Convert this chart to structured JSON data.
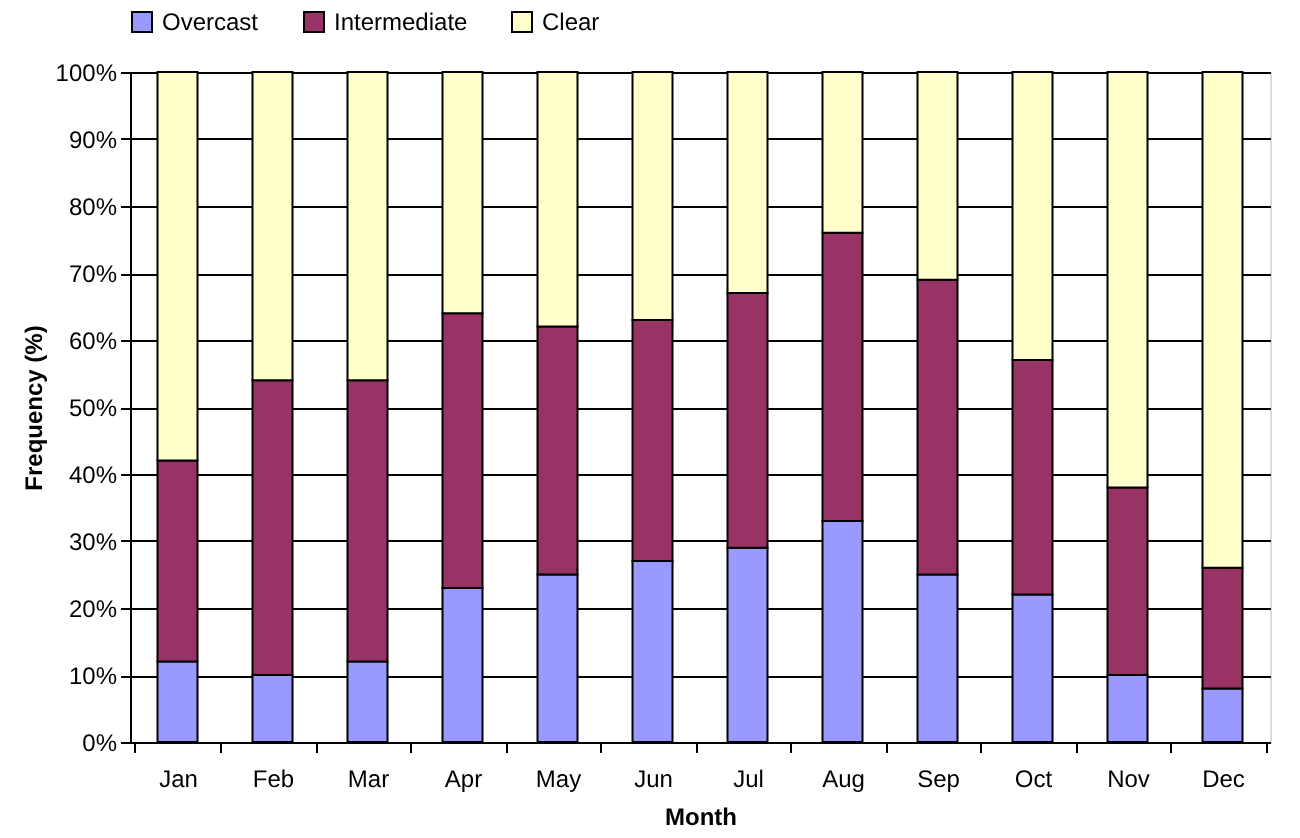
{
  "chart_data": {
    "type": "bar",
    "stacked": true,
    "xlabel": "Month",
    "ylabel": "Frequency (%)",
    "categories": [
      "Jan",
      "Feb",
      "Mar",
      "Apr",
      "May",
      "Jun",
      "Jul",
      "Aug",
      "Sep",
      "Oct",
      "Nov",
      "Dec"
    ],
    "series": [
      {
        "name": "Overcast",
        "color": "#9999ff",
        "values": [
          12,
          10,
          12,
          23,
          25,
          27,
          29,
          33,
          25,
          22,
          10,
          8
        ]
      },
      {
        "name": "Intermediate",
        "color": "#993366",
        "values": [
          30,
          44,
          42,
          41,
          37,
          36,
          38,
          43,
          44,
          35,
          28,
          18
        ]
      },
      {
        "name": "Clear",
        "color": "#ffffcc",
        "values": [
          58,
          46,
          46,
          36,
          38,
          37,
          33,
          24,
          31,
          43,
          62,
          74
        ]
      }
    ],
    "ylim": [
      0,
      100
    ],
    "yticks": [
      {
        "value": 0,
        "label": "0%"
      },
      {
        "value": 10,
        "label": "10%"
      },
      {
        "value": 20,
        "label": "20%"
      },
      {
        "value": 30,
        "label": "30%"
      },
      {
        "value": 40,
        "label": "40%"
      },
      {
        "value": 50,
        "label": "50%"
      },
      {
        "value": 60,
        "label": "60%"
      },
      {
        "value": 70,
        "label": "70%"
      },
      {
        "value": 80,
        "label": "80%"
      },
      {
        "value": 90,
        "label": "90%"
      },
      {
        "value": 100,
        "label": "100%"
      }
    ],
    "grid": "y",
    "legend": "top"
  }
}
